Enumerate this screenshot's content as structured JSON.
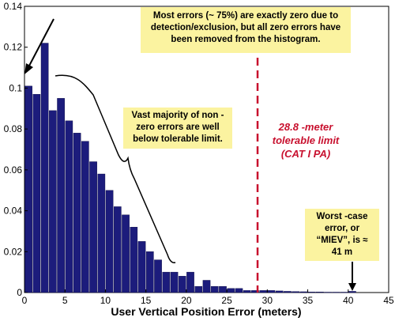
{
  "chart_data": {
    "type": "bar",
    "xlabel": "User Vertical Position Error (meters)",
    "ylabel": "",
    "xlim": [
      0,
      45
    ],
    "ylim": [
      0,
      0.14
    ],
    "x_ticks": [
      "0",
      "5",
      "10",
      "15",
      "20",
      "25",
      "30",
      "35",
      "40",
      "45"
    ],
    "y_ticks": [
      "0",
      "0.02",
      "0.04",
      "0.06",
      "0.08",
      "0.1",
      "0.12",
      "0.14"
    ],
    "bin_width": 1,
    "x": [
      0.5,
      1.5,
      2.5,
      3.5,
      4.5,
      5.5,
      6.5,
      7.5,
      8.5,
      9.5,
      10.5,
      11.5,
      12.5,
      13.5,
      14.5,
      15.5,
      16.5,
      17.5,
      18.5,
      19.5,
      20.5,
      21.5,
      22.5,
      23.5,
      24.5,
      25.5,
      26.5,
      27.5,
      28.5,
      29.5,
      30.5,
      31.5,
      32.5,
      33.5,
      34.5,
      35.5,
      36.5,
      37.5,
      38.5,
      39.5,
      40.5
    ],
    "values": [
      0.101,
      0.097,
      0.122,
      0.089,
      0.095,
      0.084,
      0.078,
      0.074,
      0.064,
      0.058,
      0.05,
      0.042,
      0.038,
      0.032,
      0.025,
      0.02,
      0.016,
      0.01,
      0.01,
      0.008,
      0.01,
      0.003,
      0.006,
      0.003,
      0.003,
      0.002,
      0.002,
      0.001,
      0.001,
      0.001,
      0.001,
      0.0008,
      0.0006,
      0.0005,
      0.0004,
      0.0003,
      0.0003,
      0.0002,
      0.0002,
      0.0002,
      0.0006
    ],
    "bar_color": "#1c1c7c",
    "grid": false,
    "limit_line": {
      "x": 28.8,
      "color": "#c8102e"
    },
    "annotations": {
      "top_box": [
        "Most errors (~ 75%) are exactly zero due to",
        "detection/exclusion, but all zero errors have",
        "been removed from the histogram."
      ],
      "middle_box": [
        "Vast majority of non  -",
        "zero errors are well",
        "below tolerable limit."
      ],
      "limit_label": [
        "28.8 -meter",
        "tolerable limit",
        "(CAT I PA)"
      ],
      "miev_box": [
        "Worst -case",
        "error, or",
        "“MIEV”, is ≈",
        "41 m"
      ]
    },
    "annotation_color": "#fbf3a0"
  }
}
